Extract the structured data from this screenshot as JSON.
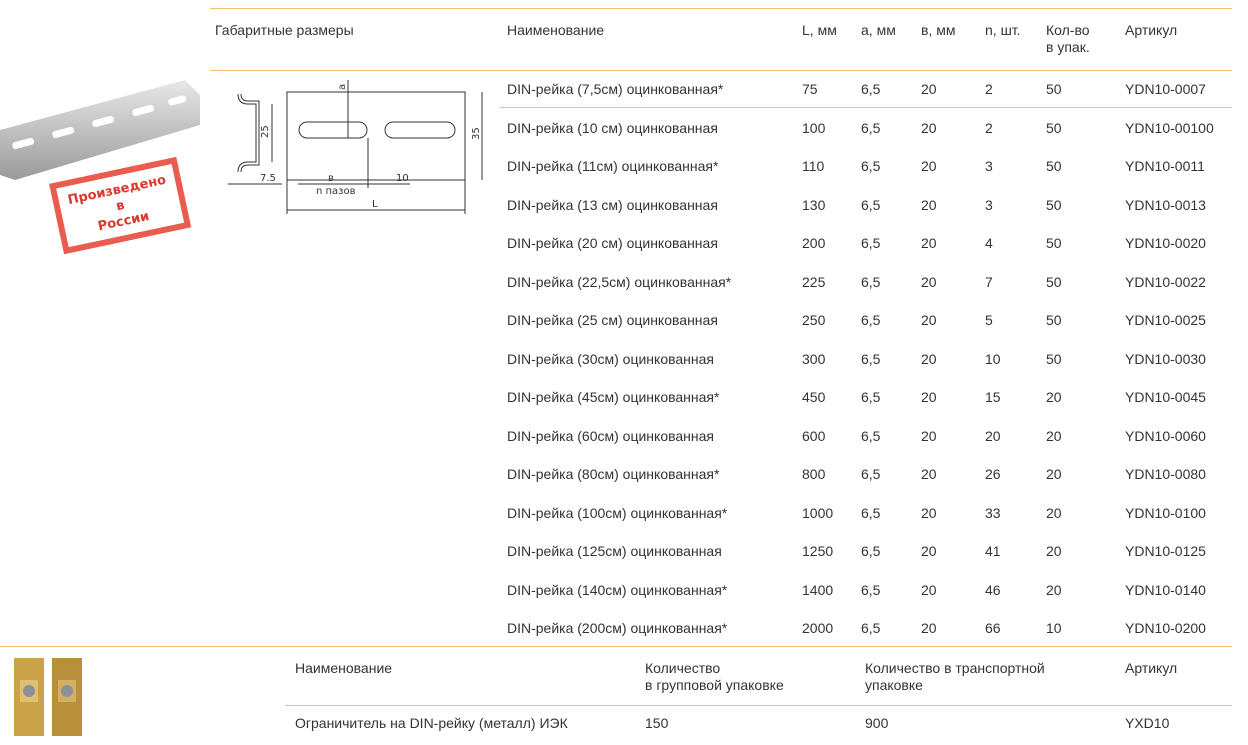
{
  "table1": {
    "header": {
      "dimensions": "Габаритные размеры",
      "name": "Наименование",
      "L": "L, мм",
      "a": "а, мм",
      "b": "в, мм",
      "n": "n, шт.",
      "qty": [
        "Кол-во",
        "в упак."
      ],
      "article": "Артикул"
    },
    "rows": [
      [
        "DIN-рейка  (7,5см) оцинкованная*",
        "75",
        "6,5",
        "20",
        "2",
        "50",
        "YDN10-0007"
      ],
      [
        "DIN-рейка (10 см) оцинкованная",
        "100",
        "6,5",
        "20",
        "2",
        "50",
        "YDN10-00100"
      ],
      [
        "DIN-рейка  (11см) оцинкованная*",
        "110",
        "6,5",
        "20",
        "3",
        "50",
        "YDN10-0011"
      ],
      [
        "DIN-рейка (13 см) оцинкованная",
        "130",
        "6,5",
        "20",
        "3",
        "50",
        "YDN10-0013"
      ],
      [
        "DIN-рейка (20 см) оцинкованная",
        "200",
        "6,5",
        "20",
        "4",
        "50",
        "YDN10-0020"
      ],
      [
        "DIN-рейка  (22,5см) оцинкованная*",
        "225",
        "6,5",
        "20",
        "7",
        "50",
        "YDN10-0022"
      ],
      [
        "DIN-рейка (25 см) оцинкованная",
        "250",
        "6,5",
        "20",
        "5",
        "50",
        "YDN10-0025"
      ],
      [
        "DIN-рейка  (30см) оцинкованная",
        "300",
        "6,5",
        "20",
        "10",
        "50",
        "YDN10-0030"
      ],
      [
        "DIN-рейка  (45см) оцинкованная*",
        "450",
        "6,5",
        "20",
        "15",
        "20",
        "YDN10-0045"
      ],
      [
        "DIN-рейка  (60см) оцинкованная",
        "600",
        "6,5",
        "20",
        "20",
        "20",
        "YDN10-0060"
      ],
      [
        "DIN-рейка  (80см) оцинкованная*",
        "800",
        "6,5",
        "20",
        "26",
        "20",
        "YDN10-0080"
      ],
      [
        "DIN-рейка  (100см) оцинкованная*",
        "1000",
        "6,5",
        "20",
        "33",
        "20",
        "YDN10-0100"
      ],
      [
        "DIN-рейка (125см) оцинкованная",
        "1250",
        "6,5",
        "20",
        "41",
        "20",
        "YDN10-0125"
      ],
      [
        "DIN-рейка (140см) оцинкованная*",
        "1400",
        "6,5",
        "20",
        "46",
        "20",
        "YDN10-0140"
      ],
      [
        "DIN-рейка (200см) оцинкованная*",
        "2000",
        "6,5",
        "20",
        "66",
        "10",
        "YDN10-0200"
      ]
    ]
  },
  "diagram": {
    "a": "a",
    "h25": "25",
    "h35": "35",
    "w75": "7.5",
    "b": "в",
    "n": "n пазов",
    "w10": "10",
    "L": "L"
  },
  "stamp": [
    "Произведено",
    "в",
    "России"
  ],
  "table2": {
    "header": {
      "name": "Наименование",
      "group": [
        "Количество",
        "в групповой упаковке"
      ],
      "transport": [
        "Количество в транспортной",
        "упаковке"
      ],
      "article": "Артикул"
    },
    "rows": [
      [
        "Ограничитель на DIN-рейку (металл) ИЭК",
        "150",
        "900",
        "YXD10"
      ]
    ]
  }
}
